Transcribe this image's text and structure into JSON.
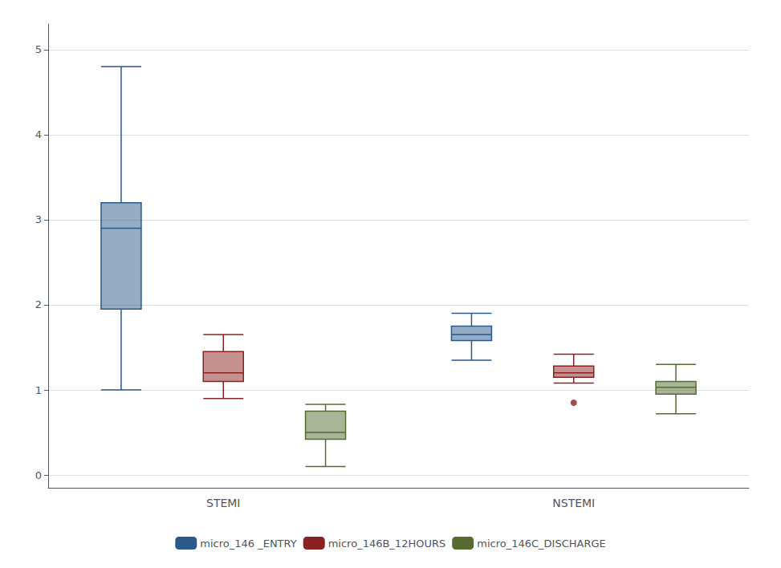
{
  "chart_data": {
    "type": "boxplot",
    "categories": [
      "STEMI",
      "NSTEMI"
    ],
    "series": [
      {
        "name": "micro_146 _ENTRY",
        "color": "#2a5a8a",
        "values": [
          {
            "whislo": 1.0,
            "q1": 1.95,
            "med": 2.9,
            "q3": 3.2,
            "whishi": 4.8,
            "fliers": []
          },
          {
            "whislo": 1.35,
            "q1": 1.58,
            "med": 1.65,
            "q3": 1.75,
            "whishi": 1.9,
            "fliers": []
          }
        ]
      },
      {
        "name": "micro_146B_12HOURS",
        "color": "#8b2222",
        "values": [
          {
            "whislo": 0.9,
            "q1": 1.1,
            "med": 1.2,
            "q3": 1.45,
            "whishi": 1.65,
            "fliers": []
          },
          {
            "whislo": 1.08,
            "q1": 1.15,
            "med": 1.2,
            "q3": 1.28,
            "whishi": 1.42,
            "fliers": [
              0.85
            ]
          }
        ]
      },
      {
        "name": "micro_146C_DISCHARGE",
        "color": "#556b2f",
        "values": [
          {
            "whislo": 0.1,
            "q1": 0.42,
            "med": 0.5,
            "q3": 0.75,
            "whishi": 0.83,
            "fliers": []
          },
          {
            "whislo": 0.72,
            "q1": 0.95,
            "med": 1.03,
            "q3": 1.1,
            "whishi": 1.3,
            "fliers": []
          }
        ]
      }
    ],
    "ylim": [
      -0.15,
      5.3
    ],
    "yticks": [
      0,
      1,
      2,
      3,
      4,
      5
    ],
    "grid": true,
    "legend": "bottom"
  }
}
